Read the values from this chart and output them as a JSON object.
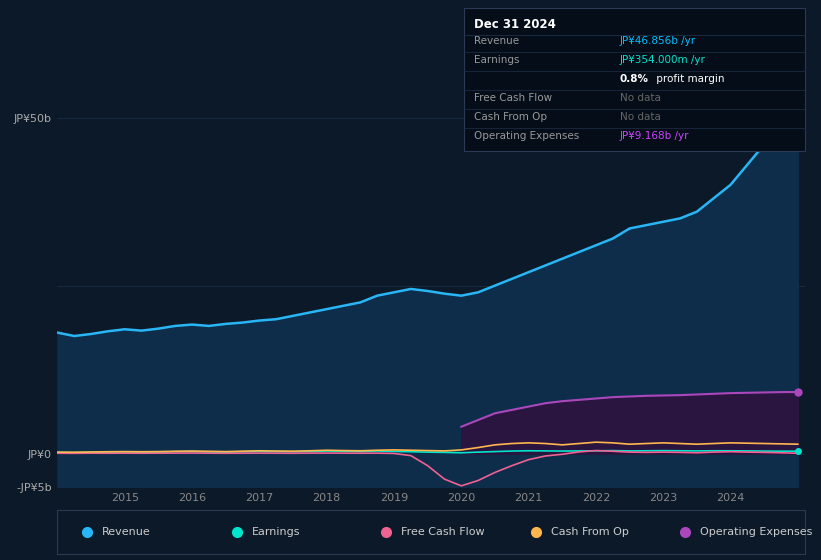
{
  "bg_color": "#0c1929",
  "plot_bg_color": "#0c1929",
  "grid_color": "#1a2e45",
  "title_text": "Dec 31 2024",
  "info_box": {
    "rows": [
      {
        "label": "Revenue",
        "value": "JP¥46.856b /yr",
        "value_color": "#00bfff"
      },
      {
        "label": "Earnings",
        "value": "JP¥354.000m /yr",
        "value_color": "#00e5cc"
      },
      {
        "label": "",
        "value": "0.8% profit margin",
        "value_color": "#ffffff",
        "bold_prefix": "0.8%"
      },
      {
        "label": "Free Cash Flow",
        "value": "No data",
        "value_color": "#666666"
      },
      {
        "label": "Cash From Op",
        "value": "No data",
        "value_color": "#666666"
      },
      {
        "label": "Operating Expenses",
        "value": "JP¥9.168b /yr",
        "value_color": "#cc44ff"
      }
    ]
  },
  "years": [
    2014.0,
    2014.25,
    2014.5,
    2014.75,
    2015.0,
    2015.25,
    2015.5,
    2015.75,
    2016.0,
    2016.25,
    2016.5,
    2016.75,
    2017.0,
    2017.25,
    2017.5,
    2017.75,
    2018.0,
    2018.25,
    2018.5,
    2018.75,
    2019.0,
    2019.25,
    2019.5,
    2019.75,
    2020.0,
    2020.25,
    2020.5,
    2020.75,
    2021.0,
    2021.25,
    2021.5,
    2021.75,
    2022.0,
    2022.25,
    2022.5,
    2022.75,
    2023.0,
    2023.25,
    2023.5,
    2023.75,
    2024.0,
    2024.25,
    2024.5,
    2024.75,
    2025.0
  ],
  "revenue": [
    18.0,
    17.5,
    17.8,
    18.2,
    18.5,
    18.3,
    18.6,
    19.0,
    19.2,
    19.0,
    19.3,
    19.5,
    19.8,
    20.0,
    20.5,
    21.0,
    21.5,
    22.0,
    22.5,
    23.5,
    24.0,
    24.5,
    24.2,
    23.8,
    23.5,
    24.0,
    25.0,
    26.0,
    27.0,
    28.0,
    29.0,
    30.0,
    31.0,
    32.0,
    33.5,
    34.0,
    34.5,
    35.0,
    36.0,
    38.0,
    40.0,
    43.0,
    46.0,
    47.0,
    46.856
  ],
  "earnings": [
    0.18,
    0.15,
    0.2,
    0.22,
    0.25,
    0.2,
    0.22,
    0.28,
    0.3,
    0.25,
    0.22,
    0.28,
    0.32,
    0.3,
    0.28,
    0.32,
    0.38,
    0.35,
    0.32,
    0.38,
    0.32,
    0.28,
    0.22,
    0.18,
    0.12,
    0.22,
    0.3,
    0.38,
    0.42,
    0.4,
    0.38,
    0.4,
    0.42,
    0.44,
    0.4,
    0.42,
    0.44,
    0.42,
    0.4,
    0.42,
    0.42,
    0.4,
    0.38,
    0.36,
    0.354
  ],
  "free_cash_flow": [
    0.05,
    0.04,
    0.06,
    0.05,
    0.06,
    0.05,
    0.06,
    0.07,
    0.08,
    0.06,
    0.05,
    0.06,
    0.07,
    0.06,
    0.05,
    0.07,
    0.08,
    0.07,
    0.06,
    0.07,
    0.02,
    -0.3,
    -1.8,
    -3.8,
    -4.8,
    -4.0,
    -2.8,
    -1.8,
    -0.9,
    -0.35,
    -0.1,
    0.25,
    0.45,
    0.35,
    0.22,
    0.18,
    0.22,
    0.18,
    0.12,
    0.22,
    0.28,
    0.22,
    0.18,
    0.12,
    0.05
  ],
  "cash_from_op": [
    0.22,
    0.2,
    0.24,
    0.28,
    0.3,
    0.28,
    0.3,
    0.35,
    0.38,
    0.34,
    0.3,
    0.36,
    0.42,
    0.38,
    0.36,
    0.42,
    0.5,
    0.45,
    0.42,
    0.5,
    0.55,
    0.5,
    0.45,
    0.4,
    0.55,
    0.9,
    1.3,
    1.5,
    1.6,
    1.5,
    1.3,
    1.5,
    1.7,
    1.6,
    1.4,
    1.5,
    1.6,
    1.5,
    1.4,
    1.5,
    1.6,
    1.55,
    1.5,
    1.45,
    1.4
  ],
  "operating_expenses": [
    0.0,
    0.0,
    0.0,
    0.0,
    0.0,
    0.0,
    0.0,
    0.0,
    0.0,
    0.0,
    0.0,
    0.0,
    0.0,
    0.0,
    0.0,
    0.0,
    0.0,
    0.0,
    0.0,
    0.0,
    0.0,
    0.0,
    0.0,
    0.0,
    4.0,
    5.0,
    6.0,
    6.5,
    7.0,
    7.5,
    7.8,
    8.0,
    8.2,
    8.4,
    8.5,
    8.6,
    8.65,
    8.7,
    8.8,
    8.9,
    9.0,
    9.05,
    9.1,
    9.15,
    9.168
  ],
  "revenue_color": "#29b6f6",
  "revenue_fill": "#0d2d4a",
  "earnings_color": "#00e5cc",
  "free_cash_flow_color": "#f06292",
  "cash_from_op_color": "#ffb74d",
  "op_expenses_color": "#ab47bc",
  "op_expenses_fill": "#2a1540",
  "ylim": [
    -5,
    55
  ],
  "xlim_start": 2014.0,
  "xlim_end": 2025.1,
  "ytick_vals": [
    50,
    25,
    0,
    -5
  ],
  "ytick_labels": [
    "JP¥50b",
    "",
    "JP¥0",
    "-JP¥5b"
  ],
  "xtick_years": [
    2015,
    2016,
    2017,
    2018,
    2019,
    2020,
    2021,
    2022,
    2023,
    2024
  ],
  "legend_items": [
    {
      "label": "Revenue",
      "color": "#29b6f6"
    },
    {
      "label": "Earnings",
      "color": "#00e5cc"
    },
    {
      "label": "Free Cash Flow",
      "color": "#f06292"
    },
    {
      "label": "Cash From Op",
      "color": "#ffb74d"
    },
    {
      "label": "Operating Expenses",
      "color": "#ab47bc"
    }
  ]
}
